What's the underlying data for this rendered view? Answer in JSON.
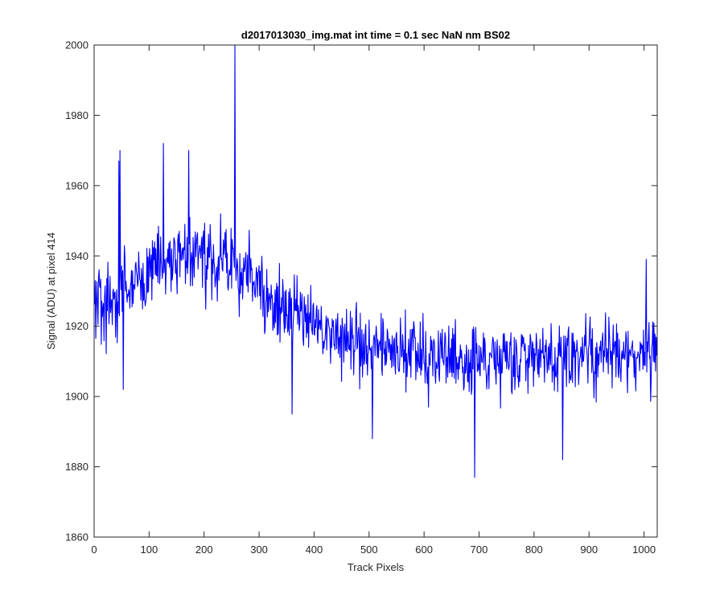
{
  "chart_data": {
    "type": "line",
    "title": "d2017013030_img.mat int time = 0.1 sec  NaN nm BS02",
    "xlabel": "Track Pixels",
    "ylabel": "Signal (ADU) at pixel 414",
    "xlim": [
      0,
      1024
    ],
    "ylim": [
      1860,
      2000
    ],
    "xticks": [
      0,
      100,
      200,
      300,
      400,
      500,
      600,
      700,
      800,
      900,
      1000
    ],
    "yticks": [
      1860,
      1880,
      1900,
      1920,
      1940,
      1960,
      1980,
      2000
    ],
    "grid": false,
    "series": [
      {
        "color": "#0000ff",
        "x_anchors": [
          0,
          50,
          100,
          150,
          200,
          250,
          300,
          350,
          400,
          450,
          500,
          550,
          600,
          650,
          700,
          750,
          800,
          850,
          900,
          950,
          1000,
          1024
        ],
        "y_trend": [
          1925,
          1930,
          1936,
          1940,
          1939,
          1937,
          1932,
          1925,
          1921,
          1917,
          1914,
          1913,
          1912,
          1911,
          1910,
          1911,
          1910,
          1911,
          1911,
          1912,
          1913,
          1913
        ],
        "noise_amplitude": 10,
        "spikes": [
          {
            "x": 45,
            "y": 1967
          },
          {
            "x": 47,
            "y": 1970
          },
          {
            "x": 53,
            "y": 1902
          },
          {
            "x": 126,
            "y": 1972
          },
          {
            "x": 172,
            "y": 1970
          },
          {
            "x": 256,
            "y": 2000
          },
          {
            "x": 258,
            "y": 1933
          },
          {
            "x": 360,
            "y": 1895
          },
          {
            "x": 506,
            "y": 1888
          },
          {
            "x": 692,
            "y": 1877
          },
          {
            "x": 852,
            "y": 1882
          },
          {
            "x": 1004,
            "y": 1939
          }
        ]
      }
    ]
  }
}
